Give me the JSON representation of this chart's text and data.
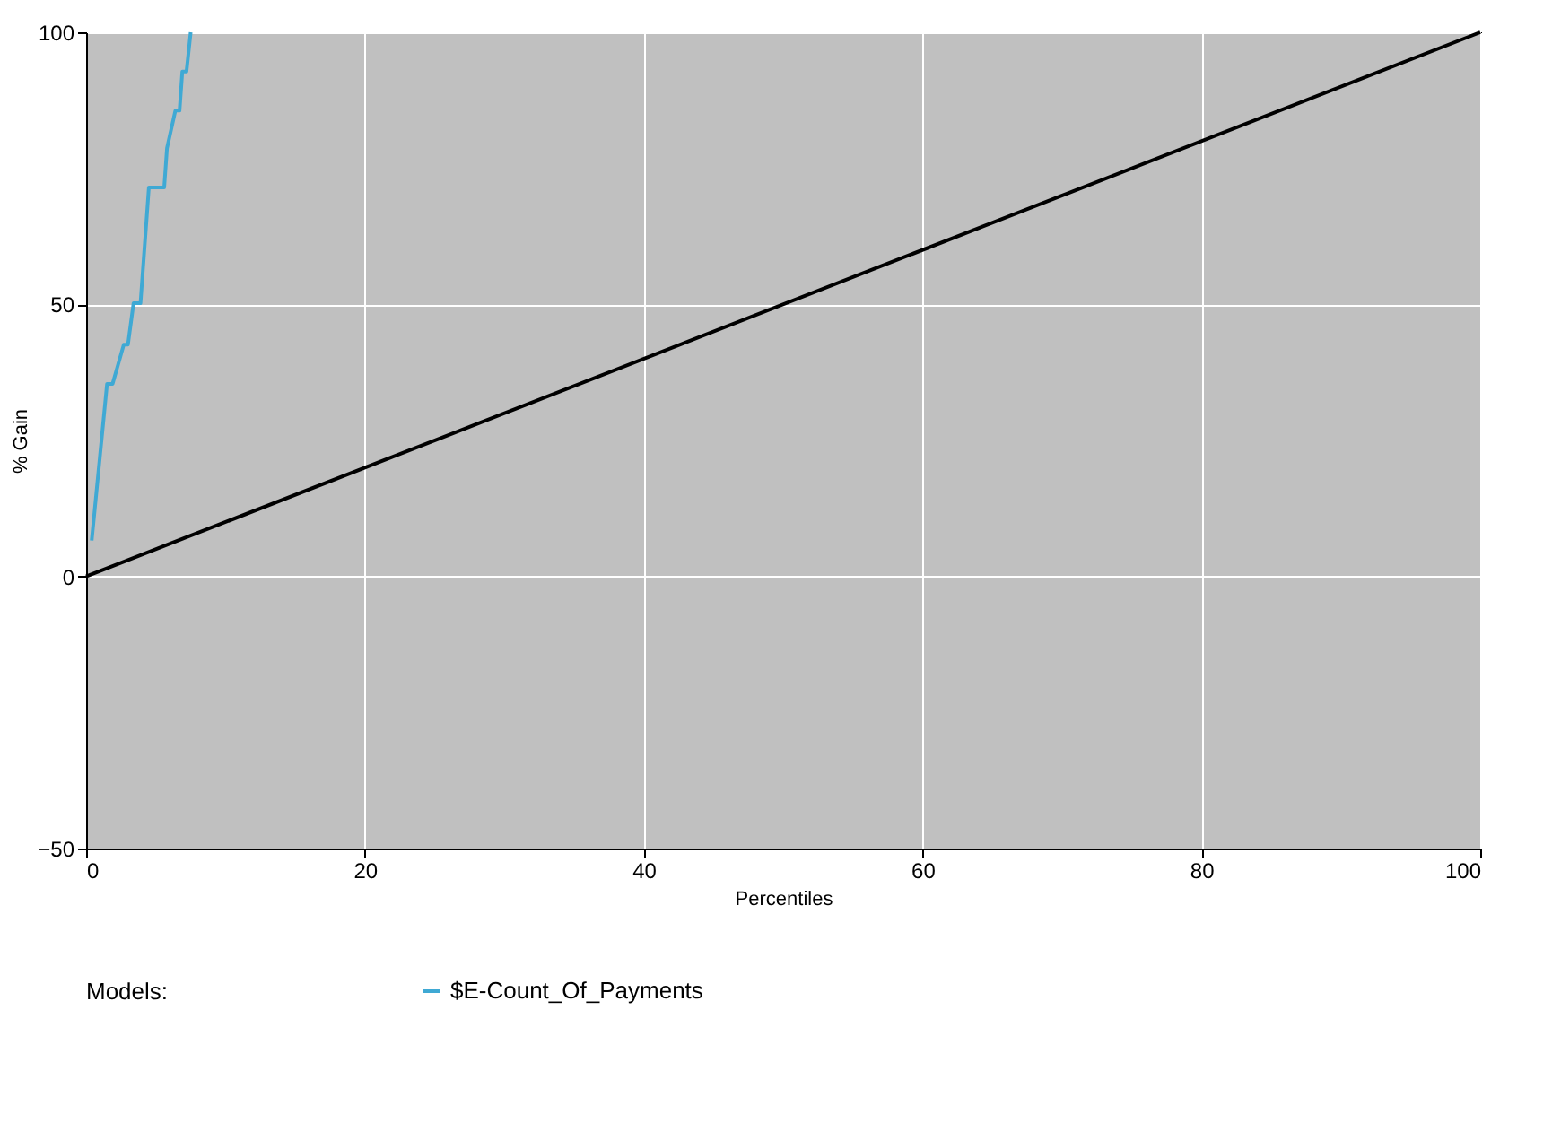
{
  "chart_data": {
    "type": "line",
    "xlabel": "Percentiles",
    "ylabel": "% Gain",
    "legend_title": "Models:",
    "legend": "bottom",
    "grid": true,
    "xlim": [
      0,
      100
    ],
    "xticks": [
      0,
      20,
      40,
      60,
      80,
      100
    ],
    "ylim": [
      -50,
      100
    ],
    "yticks": [
      -50,
      0,
      50,
      100
    ],
    "series": [
      {
        "name": "$E-Count_Of_Payments",
        "color": "#3fa9d4",
        "x": [
          0.4,
          1.5,
          1.9,
          2.7,
          3.0,
          3.4,
          3.9,
          4.5,
          5.6,
          5.8,
          6.4,
          6.7,
          6.9,
          7.2,
          7.5
        ],
        "values": [
          6.6,
          35.4,
          35.4,
          42.6,
          42.6,
          50.2,
          50.2,
          71.5,
          71.5,
          78.7,
          85.6,
          85.6,
          92.8,
          92.8,
          100
        ]
      },
      {
        "color": "#000000",
        "x": [
          0,
          100
        ],
        "values": [
          0,
          100
        ]
      }
    ]
  }
}
